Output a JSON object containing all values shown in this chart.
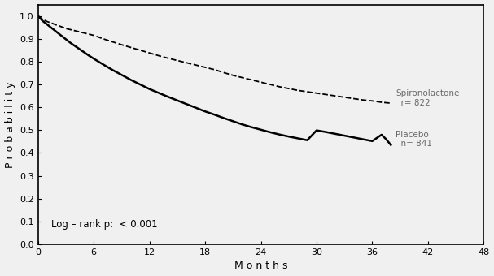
{
  "title": "",
  "xlabel": "M o n t h s",
  "ylabel": "P r o b a b i l i t y",
  "xlim": [
    0,
    48
  ],
  "ylim": [
    0.0,
    1.05
  ],
  "xticks": [
    0,
    6,
    12,
    18,
    24,
    30,
    36,
    42,
    48
  ],
  "yticks": [
    0.0,
    0.1,
    0.2,
    0.3,
    0.4,
    0.5,
    0.6,
    0.7,
    0.8,
    0.9,
    1.0
  ],
  "background_color": "#f0f0f0",
  "spiro_label": "Spironolactone\n  r= 822",
  "placebo_label": "Placebo\n  n= 841",
  "annotation": "Log – rank p:  < 0.001",
  "spiro_x": [
    0,
    0.5,
    1,
    1.5,
    2,
    2.5,
    3,
    3.5,
    4,
    4.5,
    5,
    5.5,
    6,
    7,
    8,
    9,
    10,
    11,
    12,
    13,
    14,
    15,
    16,
    17,
    18,
    19,
    20,
    21,
    22,
    23,
    24,
    25,
    26,
    27,
    28,
    29,
    30,
    31,
    32,
    33,
    34,
    35,
    36,
    37,
    38
  ],
  "spiro_y": [
    1.0,
    0.985,
    0.975,
    0.968,
    0.96,
    0.953,
    0.945,
    0.94,
    0.935,
    0.93,
    0.925,
    0.92,
    0.915,
    0.9,
    0.887,
    0.874,
    0.862,
    0.85,
    0.838,
    0.826,
    0.815,
    0.805,
    0.795,
    0.785,
    0.775,
    0.765,
    0.752,
    0.74,
    0.73,
    0.72,
    0.71,
    0.7,
    0.69,
    0.682,
    0.674,
    0.668,
    0.662,
    0.656,
    0.65,
    0.644,
    0.638,
    0.632,
    0.628,
    0.622,
    0.618
  ],
  "placebo_x": [
    0,
    0.5,
    1,
    1.5,
    2,
    2.5,
    3,
    3.5,
    4,
    4.5,
    5,
    5.5,
    6,
    7,
    8,
    9,
    10,
    11,
    12,
    13,
    14,
    15,
    16,
    17,
    18,
    19,
    20,
    21,
    22,
    23,
    24,
    25,
    26,
    27,
    28,
    29,
    30,
    31,
    32,
    33,
    34,
    35,
    36,
    37,
    37.5,
    38
  ],
  "placebo_y": [
    1.0,
    0.978,
    0.962,
    0.946,
    0.93,
    0.914,
    0.898,
    0.882,
    0.868,
    0.854,
    0.84,
    0.826,
    0.813,
    0.788,
    0.764,
    0.742,
    0.72,
    0.7,
    0.68,
    0.663,
    0.646,
    0.63,
    0.614,
    0.598,
    0.582,
    0.568,
    0.553,
    0.539,
    0.525,
    0.513,
    0.502,
    0.491,
    0.481,
    0.472,
    0.464,
    0.456,
    0.499,
    0.492,
    0.484,
    0.476,
    0.468,
    0.46,
    0.452,
    0.48,
    0.46,
    0.435
  ]
}
